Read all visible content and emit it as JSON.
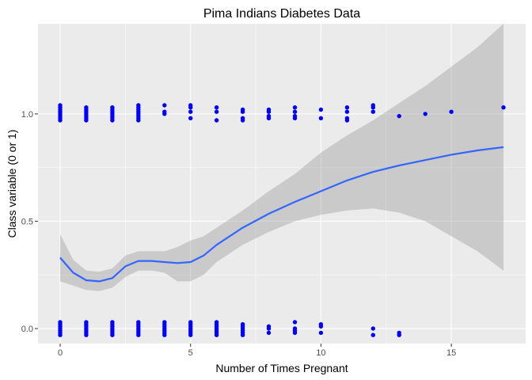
{
  "chart_data": {
    "type": "scatter",
    "title": "Pima Indians Diabetes Data",
    "xlabel": "Number of Times Pregnant",
    "ylabel": "Class variable (0 or 1)",
    "xlim": [
      -0.85,
      17.85
    ],
    "ylim": [
      -0.07,
      1.42
    ],
    "x_ticks": [
      0,
      5,
      10,
      15
    ],
    "x_tick_labels": [
      "0",
      "5",
      "10",
      "15"
    ],
    "y_ticks": [
      0.0,
      0.5,
      1.0
    ],
    "y_tick_labels": [
      "0.0",
      "0.5",
      "1.0"
    ],
    "grid": true,
    "legend": "none",
    "colors": {
      "points": "#0000ff",
      "smooth_line": "#3366ff",
      "confidence_band": "#999999",
      "panel_background": "#ebebeb",
      "grid": "#ffffff"
    },
    "points": [
      {
        "x": 0,
        "y": 0.03
      },
      {
        "x": 0,
        "y": 0.02
      },
      {
        "x": 0,
        "y": 0.01
      },
      {
        "x": 0,
        "y": 0.0
      },
      {
        "x": 0,
        "y": -0.01
      },
      {
        "x": 0,
        "y": -0.02
      },
      {
        "x": 0,
        "y": -0.03
      },
      {
        "x": 1,
        "y": 0.03
      },
      {
        "x": 1,
        "y": 0.02
      },
      {
        "x": 1,
        "y": 0.01
      },
      {
        "x": 1,
        "y": 0.0
      },
      {
        "x": 1,
        "y": -0.01
      },
      {
        "x": 1,
        "y": -0.02
      },
      {
        "x": 1,
        "y": -0.03
      },
      {
        "x": 2,
        "y": 0.03
      },
      {
        "x": 2,
        "y": 0.02
      },
      {
        "x": 2,
        "y": 0.01
      },
      {
        "x": 2,
        "y": 0.0
      },
      {
        "x": 2,
        "y": -0.01
      },
      {
        "x": 2,
        "y": -0.02
      },
      {
        "x": 2,
        "y": -0.03
      },
      {
        "x": 3,
        "y": 0.03
      },
      {
        "x": 3,
        "y": 0.02
      },
      {
        "x": 3,
        "y": 0.01
      },
      {
        "x": 3,
        "y": 0.0
      },
      {
        "x": 3,
        "y": -0.01
      },
      {
        "x": 3,
        "y": -0.02
      },
      {
        "x": 3,
        "y": -0.03
      },
      {
        "x": 4,
        "y": 0.03
      },
      {
        "x": 4,
        "y": 0.02
      },
      {
        "x": 4,
        "y": 0.01
      },
      {
        "x": 4,
        "y": 0.0
      },
      {
        "x": 4,
        "y": -0.01
      },
      {
        "x": 4,
        "y": -0.02
      },
      {
        "x": 4,
        "y": -0.03
      },
      {
        "x": 5,
        "y": 0.03
      },
      {
        "x": 5,
        "y": 0.02
      },
      {
        "x": 5,
        "y": 0.01
      },
      {
        "x": 5,
        "y": 0.0
      },
      {
        "x": 5,
        "y": -0.01
      },
      {
        "x": 5,
        "y": -0.02
      },
      {
        "x": 5,
        "y": -0.03
      },
      {
        "x": 6,
        "y": 0.03
      },
      {
        "x": 6,
        "y": 0.02
      },
      {
        "x": 6,
        "y": 0.01
      },
      {
        "x": 6,
        "y": 0.0
      },
      {
        "x": 6,
        "y": -0.01
      },
      {
        "x": 6,
        "y": -0.02
      },
      {
        "x": 6,
        "y": -0.03
      },
      {
        "x": 7,
        "y": 0.02
      },
      {
        "x": 7,
        "y": 0.01
      },
      {
        "x": 7,
        "y": 0.0
      },
      {
        "x": 7,
        "y": -0.01
      },
      {
        "x": 7,
        "y": -0.02
      },
      {
        "x": 7,
        "y": -0.03
      },
      {
        "x": 8,
        "y": 0.01
      },
      {
        "x": 8,
        "y": 0.0
      },
      {
        "x": 8,
        "y": -0.02
      },
      {
        "x": 9,
        "y": 0.03
      },
      {
        "x": 9,
        "y": 0.0
      },
      {
        "x": 9,
        "y": -0.01
      },
      {
        "x": 9,
        "y": -0.02
      },
      {
        "x": 10,
        "y": 0.02
      },
      {
        "x": 10,
        "y": 0.01
      },
      {
        "x": 10,
        "y": -0.02
      },
      {
        "x": 12,
        "y": 0.0
      },
      {
        "x": 12,
        "y": -0.03
      },
      {
        "x": 13,
        "y": -0.02
      },
      {
        "x": 13,
        "y": -0.03
      },
      {
        "x": 0,
        "y": 1.04
      },
      {
        "x": 0,
        "y": 1.03
      },
      {
        "x": 0,
        "y": 1.02
      },
      {
        "x": 0,
        "y": 1.01
      },
      {
        "x": 0,
        "y": 1.0
      },
      {
        "x": 0,
        "y": 0.99
      },
      {
        "x": 0,
        "y": 0.98
      },
      {
        "x": 0,
        "y": 0.97
      },
      {
        "x": 1,
        "y": 1.03
      },
      {
        "x": 1,
        "y": 1.02
      },
      {
        "x": 1,
        "y": 1.01
      },
      {
        "x": 1,
        "y": 1.0
      },
      {
        "x": 1,
        "y": 0.99
      },
      {
        "x": 1,
        "y": 0.98
      },
      {
        "x": 1,
        "y": 0.97
      },
      {
        "x": 2,
        "y": 1.03
      },
      {
        "x": 2,
        "y": 1.02
      },
      {
        "x": 2,
        "y": 1.01
      },
      {
        "x": 2,
        "y": 1.0
      },
      {
        "x": 2,
        "y": 0.99
      },
      {
        "x": 2,
        "y": 0.98
      },
      {
        "x": 2,
        "y": 0.97
      },
      {
        "x": 3,
        "y": 1.04
      },
      {
        "x": 3,
        "y": 1.03
      },
      {
        "x": 3,
        "y": 1.02
      },
      {
        "x": 3,
        "y": 1.01
      },
      {
        "x": 3,
        "y": 1.0
      },
      {
        "x": 3,
        "y": 0.99
      },
      {
        "x": 3,
        "y": 0.98
      },
      {
        "x": 3,
        "y": 0.97
      },
      {
        "x": 4,
        "y": 1.04
      },
      {
        "x": 4,
        "y": 1.01
      },
      {
        "x": 4,
        "y": 1.0
      },
      {
        "x": 5,
        "y": 1.04
      },
      {
        "x": 5,
        "y": 1.03
      },
      {
        "x": 5,
        "y": 1.01
      },
      {
        "x": 5,
        "y": 0.98
      },
      {
        "x": 6,
        "y": 1.03
      },
      {
        "x": 6,
        "y": 1.01
      },
      {
        "x": 6,
        "y": 0.97
      },
      {
        "x": 7,
        "y": 1.02
      },
      {
        "x": 7,
        "y": 1.01
      },
      {
        "x": 7,
        "y": 0.98
      },
      {
        "x": 7,
        "y": 0.97
      },
      {
        "x": 8,
        "y": 1.02
      },
      {
        "x": 8,
        "y": 1.01
      },
      {
        "x": 8,
        "y": 0.99
      },
      {
        "x": 8,
        "y": 0.98
      },
      {
        "x": 9,
        "y": 1.03
      },
      {
        "x": 9,
        "y": 1.01
      },
      {
        "x": 9,
        "y": 0.99
      },
      {
        "x": 9,
        "y": 0.98
      },
      {
        "x": 10,
        "y": 1.02
      },
      {
        "x": 10,
        "y": 0.98
      },
      {
        "x": 11,
        "y": 1.03
      },
      {
        "x": 11,
        "y": 1.01
      },
      {
        "x": 11,
        "y": 0.98
      },
      {
        "x": 11,
        "y": 0.97
      },
      {
        "x": 12,
        "y": 1.04
      },
      {
        "x": 12,
        "y": 1.03
      },
      {
        "x": 12,
        "y": 1.01
      },
      {
        "x": 13,
        "y": 0.99
      },
      {
        "x": 14,
        "y": 1.0
      },
      {
        "x": 15,
        "y": 1.01
      },
      {
        "x": 17,
        "y": 1.03
      }
    ],
    "smooth_fit": [
      {
        "x": 0,
        "y": 0.33,
        "lo": 0.22,
        "hi": 0.44
      },
      {
        "x": 0.5,
        "y": 0.26,
        "lo": 0.2,
        "hi": 0.32
      },
      {
        "x": 1,
        "y": 0.225,
        "lo": 0.18,
        "hi": 0.27
      },
      {
        "x": 1.5,
        "y": 0.22,
        "lo": 0.175,
        "hi": 0.265
      },
      {
        "x": 2,
        "y": 0.235,
        "lo": 0.19,
        "hi": 0.28
      },
      {
        "x": 2.5,
        "y": 0.29,
        "lo": 0.24,
        "hi": 0.34
      },
      {
        "x": 3,
        "y": 0.315,
        "lo": 0.27,
        "hi": 0.36
      },
      {
        "x": 3.5,
        "y": 0.315,
        "lo": 0.27,
        "hi": 0.36
      },
      {
        "x": 4,
        "y": 0.31,
        "lo": 0.26,
        "hi": 0.36
      },
      {
        "x": 4.5,
        "y": 0.305,
        "lo": 0.22,
        "hi": 0.38
      },
      {
        "x": 5,
        "y": 0.31,
        "lo": 0.22,
        "hi": 0.41
      },
      {
        "x": 5.5,
        "y": 0.34,
        "lo": 0.25,
        "hi": 0.43
      },
      {
        "x": 6,
        "y": 0.39,
        "lo": 0.31,
        "hi": 0.47
      },
      {
        "x": 6.5,
        "y": 0.43,
        "lo": 0.35,
        "hi": 0.51
      },
      {
        "x": 7,
        "y": 0.47,
        "lo": 0.39,
        "hi": 0.55
      },
      {
        "x": 8,
        "y": 0.535,
        "lo": 0.45,
        "hi": 0.64
      },
      {
        "x": 9,
        "y": 0.59,
        "lo": 0.5,
        "hi": 0.72
      },
      {
        "x": 10,
        "y": 0.64,
        "lo": 0.53,
        "hi": 0.82
      },
      {
        "x": 11,
        "y": 0.69,
        "lo": 0.55,
        "hi": 0.9
      },
      {
        "x": 12,
        "y": 0.73,
        "lo": 0.56,
        "hi": 0.97
      },
      {
        "x": 13,
        "y": 0.76,
        "lo": 0.54,
        "hi": 1.05
      },
      {
        "x": 14,
        "y": 0.785,
        "lo": 0.5,
        "hi": 1.13
      },
      {
        "x": 15,
        "y": 0.81,
        "lo": 0.43,
        "hi": 1.22
      },
      {
        "x": 16,
        "y": 0.83,
        "lo": 0.36,
        "hi": 1.31
      },
      {
        "x": 17,
        "y": 0.845,
        "lo": 0.27,
        "hi": 1.42
      }
    ]
  }
}
